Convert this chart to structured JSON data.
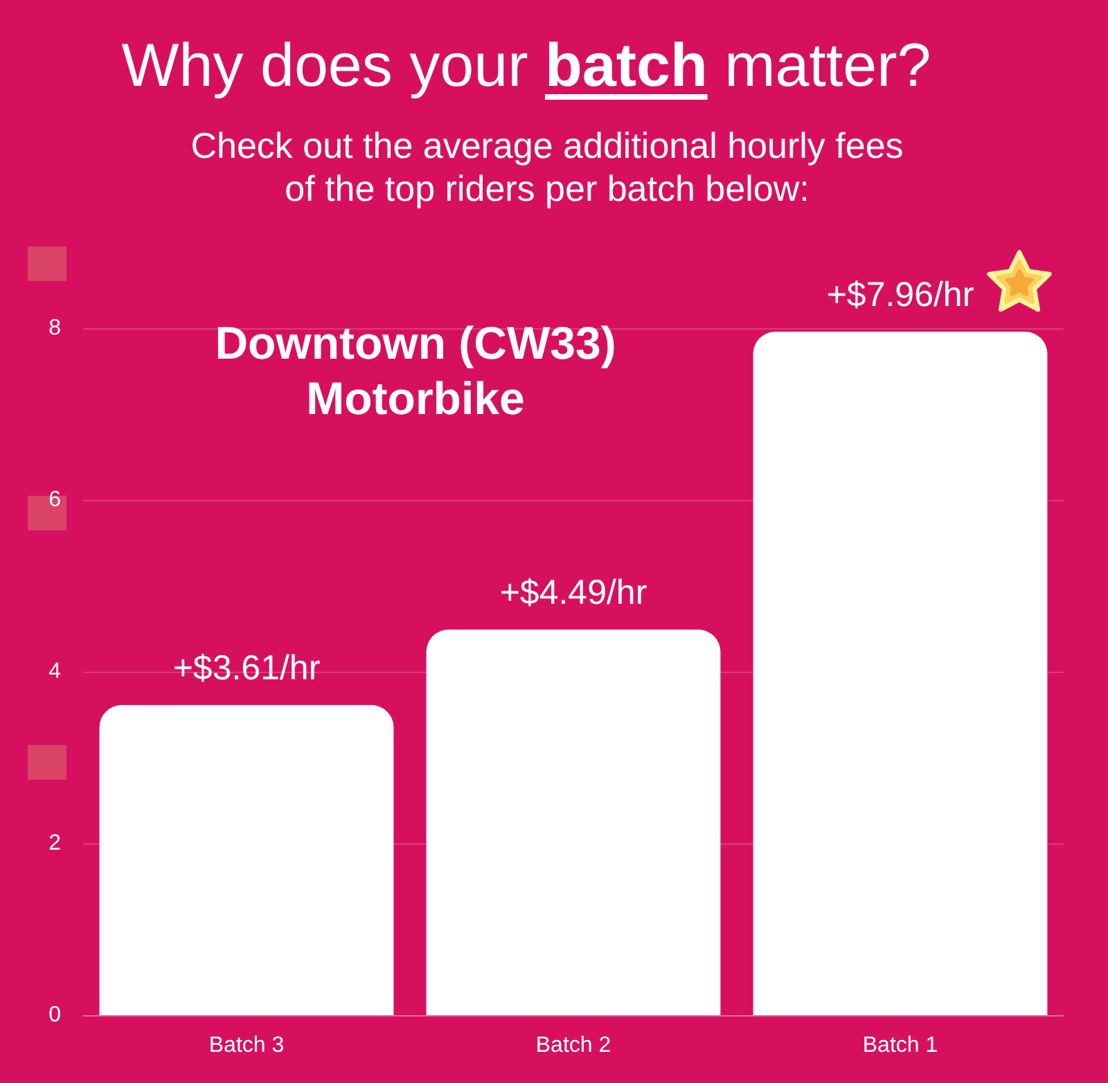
{
  "chart_data": {
    "type": "bar",
    "title": "Why does your batch matter?",
    "subtitle": "Check out the average additional hourly fees\nof the top riders per batch below:",
    "annotations": [
      "Downtown (CW33)\nMotorbike"
    ],
    "categories": [
      "Batch 3",
      "Batch 2",
      "Batch 1"
    ],
    "values": [
      3.61,
      4.49,
      7.96
    ],
    "value_labels": [
      "+$3.61/hr",
      "+$4.49/hr",
      "+$7.96/hr"
    ],
    "color": "#ffffff",
    "ylim": [
      0,
      8
    ],
    "yticks": [
      0,
      2,
      4,
      6,
      8
    ],
    "grid": "y"
  }
}
